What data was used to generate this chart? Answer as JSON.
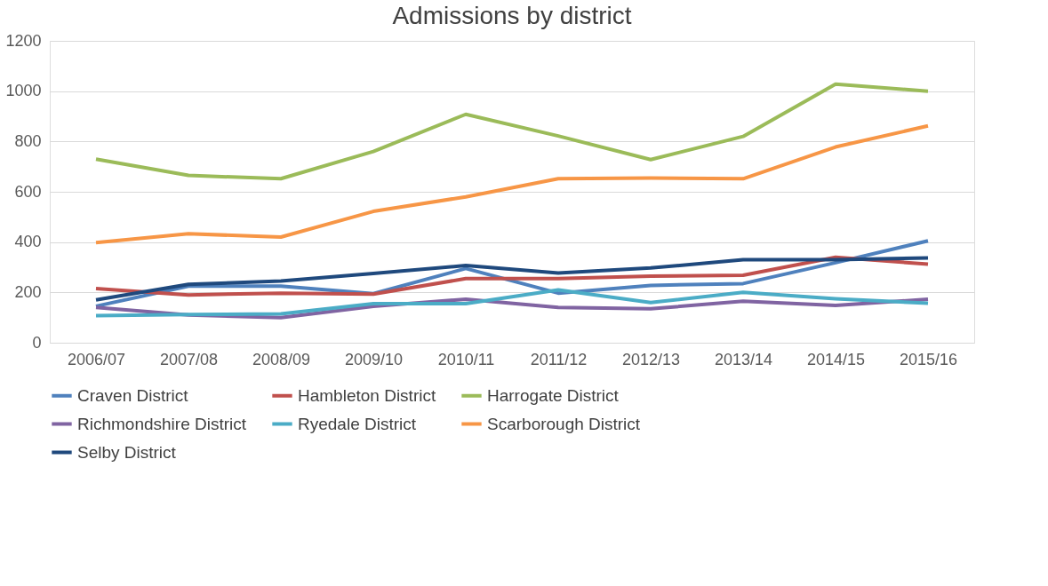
{
  "chart_data": {
    "type": "line",
    "title": "Admissions by district",
    "categories": [
      "2006/07",
      "2007/08",
      "2008/09",
      "2009/10",
      "2010/11",
      "2011/12",
      "2012/13",
      "2013/14",
      "2014/15",
      "2015/16"
    ],
    "series": [
      {
        "name": "Craven District",
        "color": "#4f81bd",
        "values": [
          145,
          225,
          225,
          195,
          295,
          197,
          228,
          235,
          318,
          405
        ]
      },
      {
        "name": "Hambleton District",
        "color": "#c0504d",
        "values": [
          215,
          190,
          197,
          193,
          255,
          255,
          265,
          268,
          340,
          312
        ]
      },
      {
        "name": "Harrogate District",
        "color": "#9bbb59",
        "values": [
          730,
          665,
          652,
          760,
          908,
          822,
          728,
          820,
          1028,
          1000
        ]
      },
      {
        "name": "Richmondshire District",
        "color": "#8064a2",
        "values": [
          140,
          110,
          100,
          145,
          173,
          140,
          135,
          165,
          148,
          173
        ]
      },
      {
        "name": "Ryedale District",
        "color": "#4bacc6",
        "values": [
          108,
          112,
          115,
          155,
          155,
          210,
          160,
          200,
          175,
          157
        ]
      },
      {
        "name": "Scarborough District",
        "color": "#f79646",
        "values": [
          398,
          433,
          420,
          522,
          580,
          652,
          655,
          652,
          778,
          862
        ]
      },
      {
        "name": "Selby District",
        "color": "#1f497d",
        "values": [
          170,
          232,
          245,
          275,
          307,
          277,
          297,
          330,
          330,
          337
        ]
      }
    ],
    "ylim": [
      0,
      1200
    ],
    "yticks": [
      0,
      200,
      400,
      600,
      800,
      1000,
      1200
    ],
    "grid": "y",
    "legend": "bottom",
    "marker": "none",
    "line_style": "solid"
  }
}
